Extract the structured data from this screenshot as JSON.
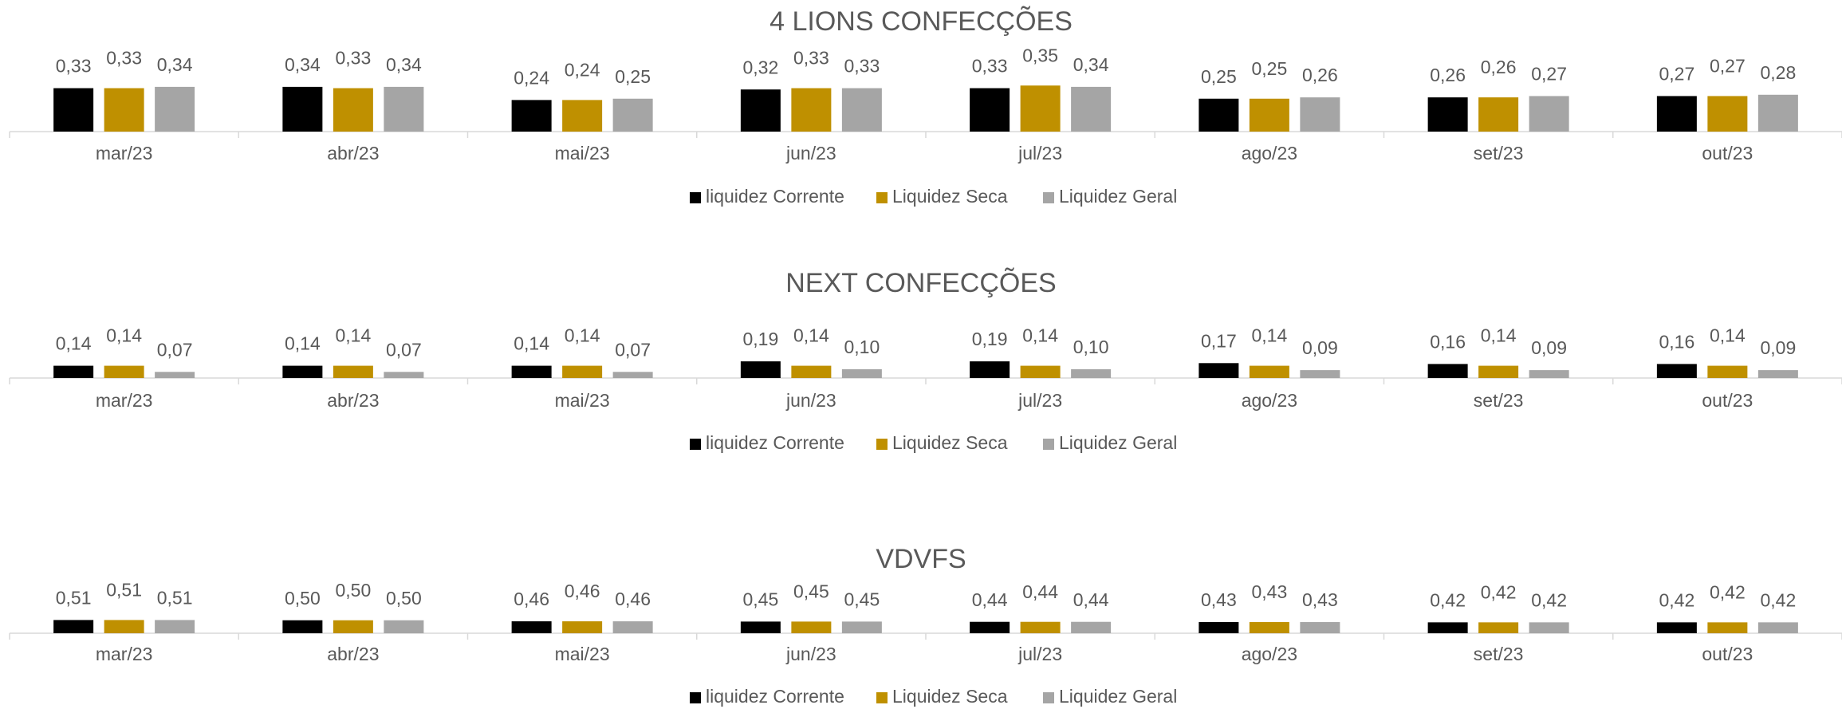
{
  "chart_data": [
    {
      "type": "bar",
      "title": "4 LIONS CONFECÇÕES",
      "categories": [
        "mar/23",
        "abr/23",
        "mai/23",
        "jun/23",
        "jul/23",
        "ago/23",
        "set/23",
        "out/23"
      ],
      "ylim": [
        0,
        0.6
      ],
      "series": [
        {
          "name": "liquidez Corrente",
          "color": "#000000",
          "values": [
            0.33,
            0.34,
            0.24,
            0.32,
            0.33,
            0.25,
            0.26,
            0.27
          ],
          "value_labels": [
            "0,33",
            "0,34",
            "0,24",
            "0,32",
            "0,33",
            "0,25",
            "0,26",
            "0,27"
          ]
        },
        {
          "name": "Liquidez Seca",
          "color": "#bf9000",
          "values": [
            0.33,
            0.33,
            0.24,
            0.33,
            0.35,
            0.25,
            0.26,
            0.27
          ],
          "value_labels": [
            "0,33",
            "0,33",
            "0,24",
            "0,33",
            "0,35",
            "0,25",
            "0,26",
            "0,27"
          ]
        },
        {
          "name": "Liquidez Geral",
          "color": "#a5a5a5",
          "values": [
            0.34,
            0.34,
            0.25,
            0.33,
            0.34,
            0.26,
            0.27,
            0.28
          ],
          "value_labels": [
            "0,34",
            "0,34",
            "0,25",
            "0,33",
            "0,34",
            "0,26",
            "0,27",
            "0,28"
          ]
        }
      ]
    },
    {
      "type": "bar",
      "title": "NEXT CONFECÇÕES",
      "categories": [
        "mar/23",
        "abr/23",
        "mai/23",
        "jun/23",
        "jul/23",
        "ago/23",
        "set/23",
        "out/23"
      ],
      "ylim": [
        0,
        0.7
      ],
      "series": [
        {
          "name": "liquidez Corrente",
          "color": "#000000",
          "values": [
            0.14,
            0.14,
            0.14,
            0.19,
            0.19,
            0.17,
            0.16,
            0.16
          ],
          "value_labels": [
            "0,14",
            "0,14",
            "0,14",
            "0,19",
            "0,19",
            "0,17",
            "0,16",
            "0,16"
          ]
        },
        {
          "name": "Liquidez Seca",
          "color": "#bf9000",
          "values": [
            0.14,
            0.14,
            0.14,
            0.14,
            0.14,
            0.14,
            0.14,
            0.14
          ],
          "value_labels": [
            "0,14",
            "0,14",
            "0,14",
            "0,14",
            "0,14",
            "0,14",
            "0,14",
            "0,14"
          ]
        },
        {
          "name": "Liquidez Geral",
          "color": "#a5a5a5",
          "values": [
            0.07,
            0.07,
            0.07,
            0.1,
            0.1,
            0.09,
            0.09,
            0.09
          ],
          "value_labels": [
            "0,07",
            "0,07",
            "0,07",
            "0,10",
            "0,10",
            "0,09",
            "0,09",
            "0,09"
          ]
        }
      ]
    },
    {
      "type": "bar",
      "title": "VDVFS",
      "categories": [
        "mar/23",
        "abr/23",
        "mai/23",
        "jun/23",
        "jul/23",
        "ago/23",
        "set/23",
        "out/23"
      ],
      "ylim": [
        0,
        2
      ],
      "series": [
        {
          "name": "liquidez Corrente",
          "color": "#000000",
          "values": [
            0.51,
            0.5,
            0.46,
            0.45,
            0.44,
            0.43,
            0.42,
            0.42
          ],
          "value_labels": [
            "0,51",
            "0,50",
            "0,46",
            "0,45",
            "0,44",
            "0,43",
            "0,42",
            "0,42"
          ]
        },
        {
          "name": "Liquidez Seca",
          "color": "#bf9000",
          "values": [
            0.51,
            0.5,
            0.46,
            0.45,
            0.44,
            0.43,
            0.42,
            0.42
          ],
          "value_labels": [
            "0,51",
            "0,50",
            "0,46",
            "0,45",
            "0,44",
            "0,43",
            "0,42",
            "0,42"
          ]
        },
        {
          "name": "Liquidez Geral",
          "color": "#a5a5a5",
          "values": [
            0.51,
            0.5,
            0.46,
            0.45,
            0.44,
            0.43,
            0.42,
            0.42
          ],
          "value_labels": [
            "0,51",
            "0,50",
            "0,46",
            "0,45",
            "0,44",
            "0,43",
            "0,42",
            "0,42"
          ]
        }
      ]
    }
  ]
}
